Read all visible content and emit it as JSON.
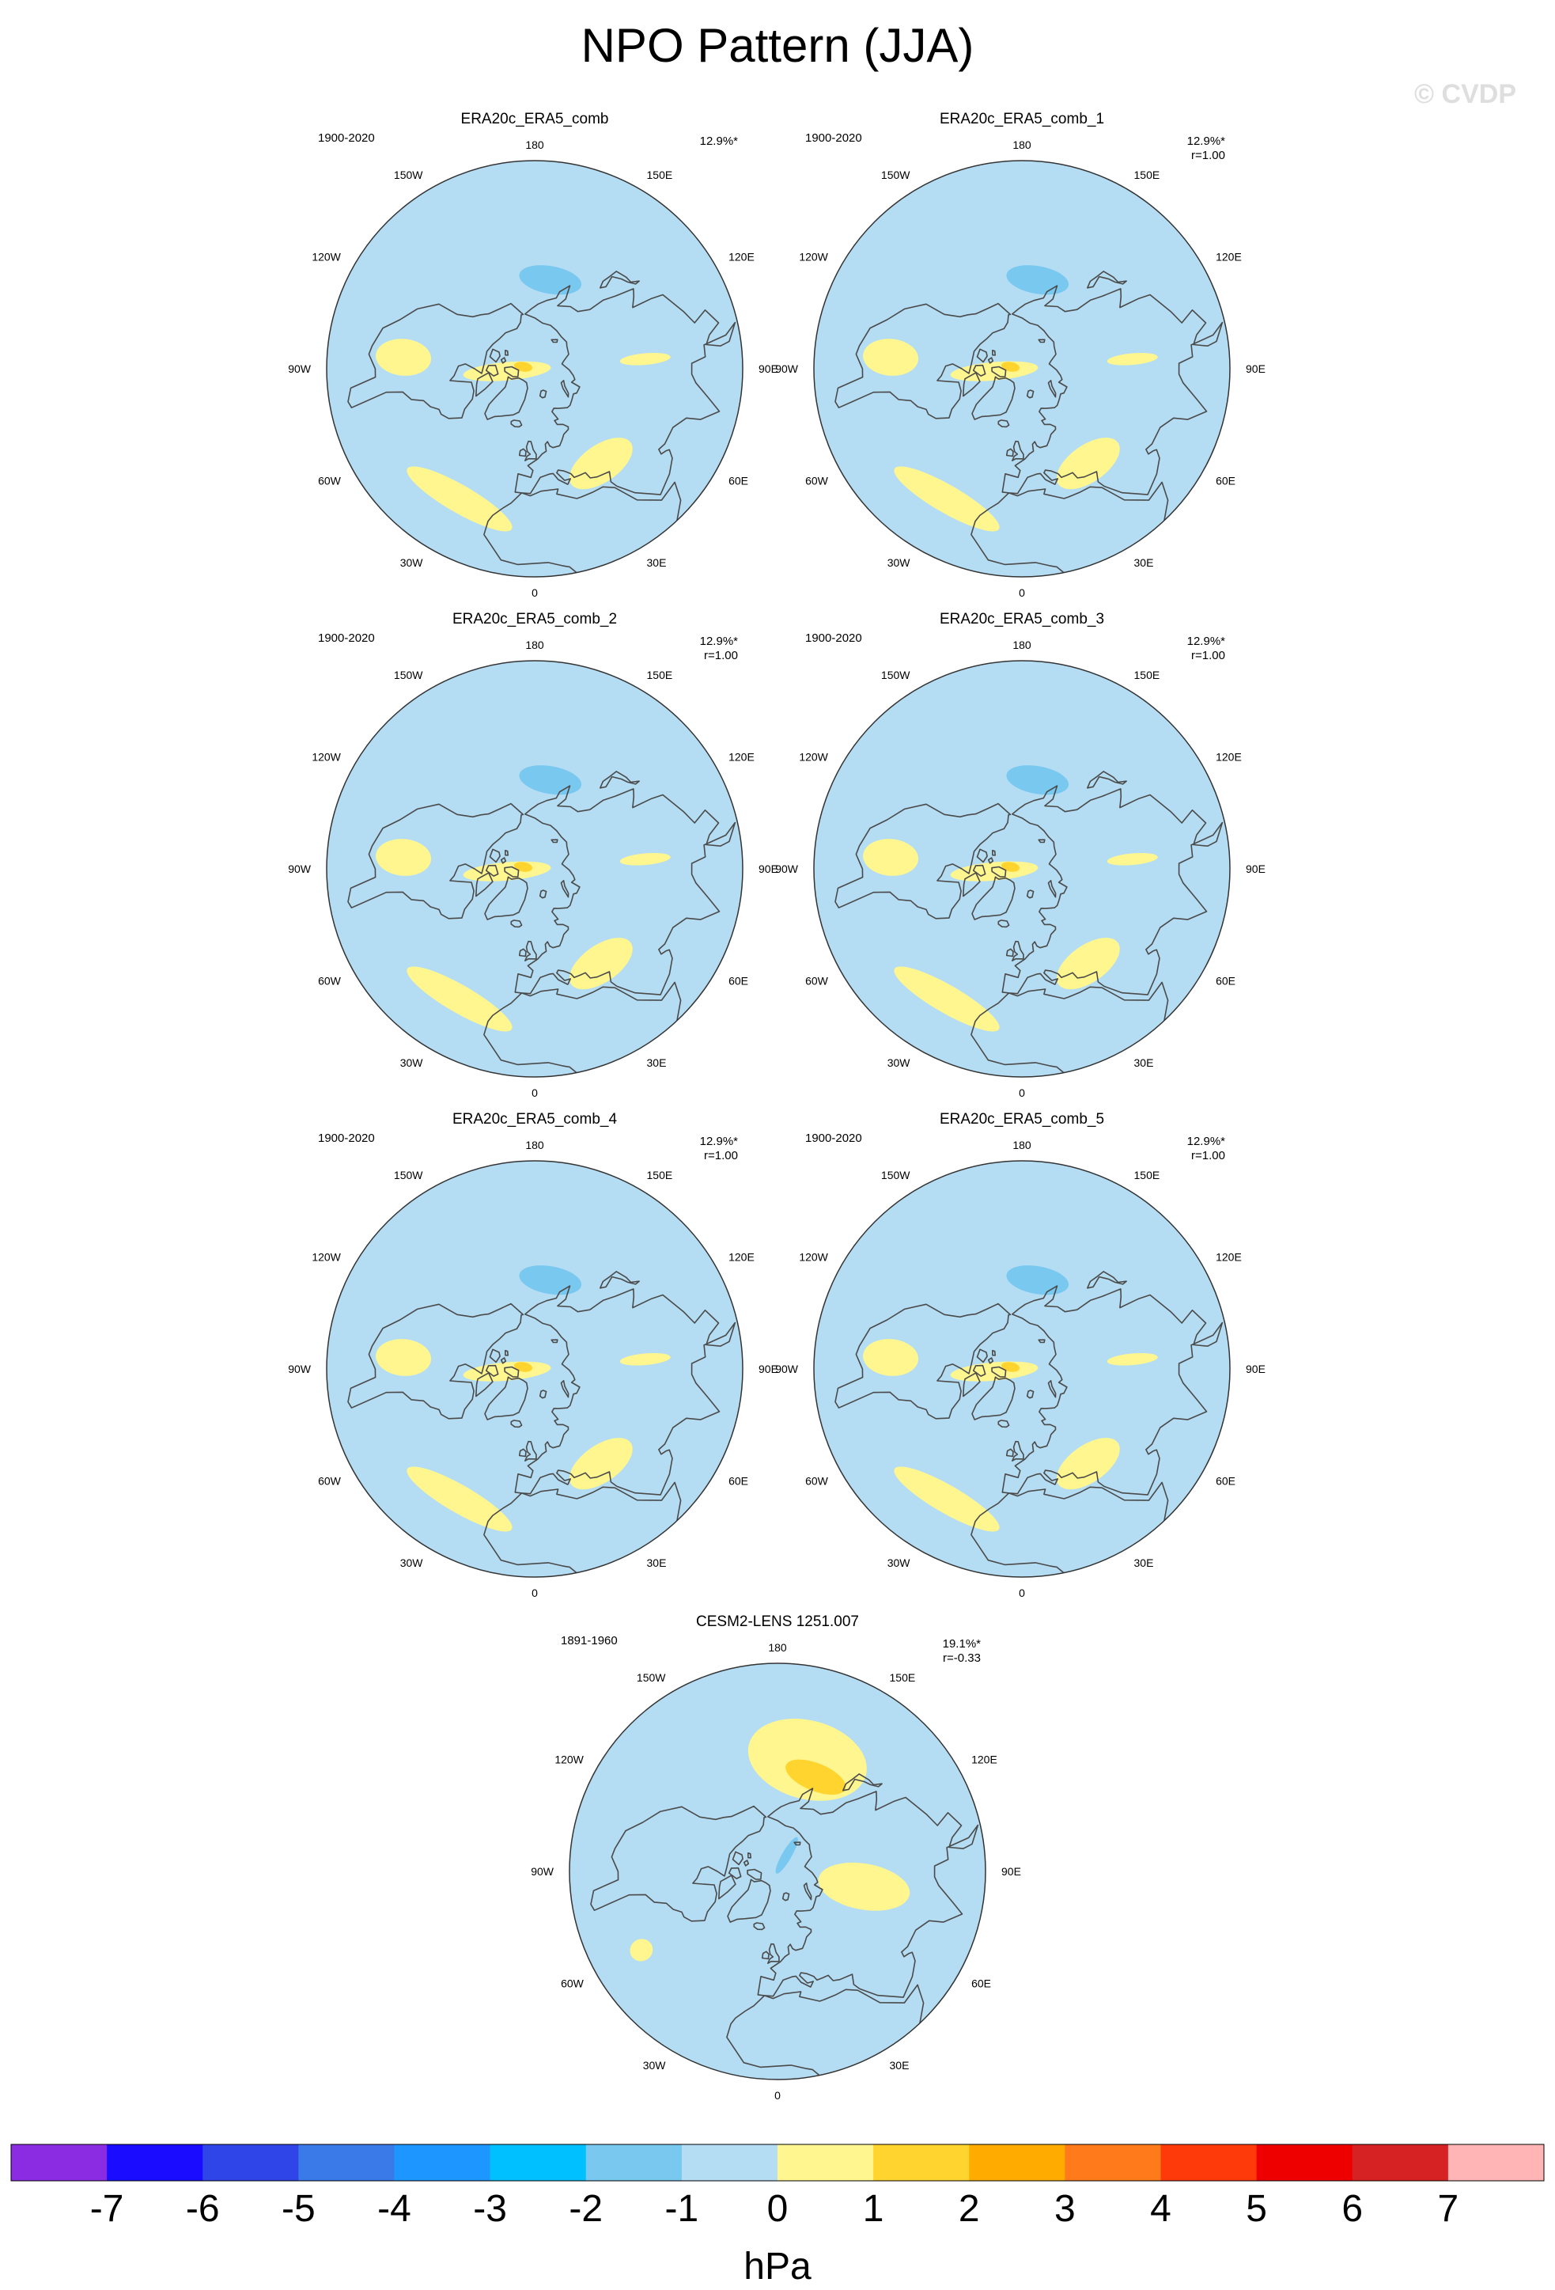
{
  "page": {
    "title": "NPO Pattern (JJA)",
    "watermark": "© CVDP"
  },
  "colors": {
    "land_outline": "#4a4a4a",
    "map_background": "#b4dcf2",
    "rim": "#333333"
  },
  "chart_data": [
    {
      "type": "polar-map",
      "title": "ERA20c_ERA5_comb",
      "period": "1900-2020",
      "pct": "12.9%*",
      "r": "",
      "longitude_labels": [
        "180",
        "150E",
        "120E",
        "90E",
        "60E",
        "30E",
        "0",
        "30W",
        "60W",
        "90W",
        "120W",
        "150W"
      ],
      "anomalies": [
        {
          "kind": "neg",
          "level": -1,
          "lon": 170,
          "lat": 51,
          "w": 20,
          "h": 6
        },
        {
          "kind": "pos",
          "level": 1,
          "lon": -85,
          "lat": 78,
          "w": 19,
          "h": 19
        },
        {
          "kind": "pos",
          "level": 2,
          "lon": -100,
          "lat": 85,
          "w": 3,
          "h": 4
        },
        {
          "kind": "pos",
          "level": 1,
          "lon": -95,
          "lat": 33,
          "w": 8,
          "h": 12
        },
        {
          "kind": "pos",
          "level": 1,
          "lon": 95,
          "lat": 42,
          "w": 3,
          "h": 11
        },
        {
          "kind": "pos",
          "level": 1,
          "lon": -30,
          "lat": 25,
          "w": 23,
          "h": 6
        },
        {
          "kind": "pos",
          "level": 1,
          "lon": 35,
          "lat": 40,
          "w": 18,
          "h": 8
        }
      ]
    },
    {
      "type": "polar-map",
      "title": "ERA20c_ERA5_comb_1",
      "period": "1900-2020",
      "pct": "12.9%*",
      "r": "r=1.00",
      "longitude_labels": [
        "180",
        "150E",
        "120E",
        "90E",
        "60E",
        "30E",
        "0",
        "30W",
        "60W",
        "90W",
        "120W",
        "150W"
      ],
      "anomalies": [
        {
          "kind": "neg",
          "level": -1,
          "lon": 170,
          "lat": 51,
          "w": 20,
          "h": 6
        },
        {
          "kind": "pos",
          "level": 1,
          "lon": -85,
          "lat": 78,
          "w": 19,
          "h": 19
        },
        {
          "kind": "pos",
          "level": 2,
          "lon": -100,
          "lat": 85,
          "w": 3,
          "h": 4
        },
        {
          "kind": "pos",
          "level": 1,
          "lon": -95,
          "lat": 33,
          "w": 8,
          "h": 12
        },
        {
          "kind": "pos",
          "level": 1,
          "lon": 95,
          "lat": 42,
          "w": 3,
          "h": 11
        },
        {
          "kind": "pos",
          "level": 1,
          "lon": -30,
          "lat": 25,
          "w": 23,
          "h": 6
        },
        {
          "kind": "pos",
          "level": 1,
          "lon": 35,
          "lat": 40,
          "w": 18,
          "h": 8
        }
      ]
    },
    {
      "type": "polar-map",
      "title": "ERA20c_ERA5_comb_2",
      "period": "1900-2020",
      "pct": "12.9%*",
      "r": "r=1.00",
      "longitude_labels": [
        "180",
        "150E",
        "120E",
        "90E",
        "60E",
        "30E",
        "0",
        "30W",
        "60W",
        "90W",
        "120W",
        "150W"
      ],
      "anomalies": [
        {
          "kind": "neg",
          "level": -1,
          "lon": 170,
          "lat": 51,
          "w": 20,
          "h": 6
        },
        {
          "kind": "pos",
          "level": 1,
          "lon": -85,
          "lat": 78,
          "w": 19,
          "h": 19
        },
        {
          "kind": "pos",
          "level": 2,
          "lon": -100,
          "lat": 85,
          "w": 3,
          "h": 4
        },
        {
          "kind": "pos",
          "level": 1,
          "lon": -95,
          "lat": 33,
          "w": 8,
          "h": 12
        },
        {
          "kind": "pos",
          "level": 1,
          "lon": 95,
          "lat": 42,
          "w": 3,
          "h": 11
        },
        {
          "kind": "pos",
          "level": 1,
          "lon": -30,
          "lat": 25,
          "w": 23,
          "h": 6
        },
        {
          "kind": "pos",
          "level": 1,
          "lon": 35,
          "lat": 40,
          "w": 18,
          "h": 8
        }
      ]
    },
    {
      "type": "polar-map",
      "title": "ERA20c_ERA5_comb_3",
      "period": "1900-2020",
      "pct": "12.9%*",
      "r": "r=1.00",
      "longitude_labels": [
        "180",
        "150E",
        "120E",
        "90E",
        "60E",
        "30E",
        "0",
        "30W",
        "60W",
        "90W",
        "120W",
        "150W"
      ],
      "anomalies": [
        {
          "kind": "neg",
          "level": -1,
          "lon": 170,
          "lat": 51,
          "w": 20,
          "h": 6
        },
        {
          "kind": "pos",
          "level": 1,
          "lon": -85,
          "lat": 78,
          "w": 19,
          "h": 19
        },
        {
          "kind": "pos",
          "level": 2,
          "lon": -100,
          "lat": 85,
          "w": 3,
          "h": 4
        },
        {
          "kind": "pos",
          "level": 1,
          "lon": -95,
          "lat": 33,
          "w": 8,
          "h": 12
        },
        {
          "kind": "pos",
          "level": 1,
          "lon": 95,
          "lat": 42,
          "w": 3,
          "h": 11
        },
        {
          "kind": "pos",
          "level": 1,
          "lon": -30,
          "lat": 25,
          "w": 23,
          "h": 6
        },
        {
          "kind": "pos",
          "level": 1,
          "lon": 35,
          "lat": 40,
          "w": 18,
          "h": 8
        }
      ]
    },
    {
      "type": "polar-map",
      "title": "ERA20c_ERA5_comb_4",
      "period": "1900-2020",
      "pct": "12.9%*",
      "r": "r=1.00",
      "longitude_labels": [
        "180",
        "150E",
        "120E",
        "90E",
        "60E",
        "30E",
        "0",
        "30W",
        "60W",
        "90W",
        "120W",
        "150W"
      ],
      "anomalies": [
        {
          "kind": "neg",
          "level": -1,
          "lon": 170,
          "lat": 51,
          "w": 20,
          "h": 6
        },
        {
          "kind": "pos",
          "level": 1,
          "lon": -85,
          "lat": 78,
          "w": 19,
          "h": 19
        },
        {
          "kind": "pos",
          "level": 2,
          "lon": -100,
          "lat": 85,
          "w": 3,
          "h": 4
        },
        {
          "kind": "pos",
          "level": 1,
          "lon": -95,
          "lat": 33,
          "w": 8,
          "h": 12
        },
        {
          "kind": "pos",
          "level": 1,
          "lon": 95,
          "lat": 42,
          "w": 3,
          "h": 11
        },
        {
          "kind": "pos",
          "level": 1,
          "lon": -30,
          "lat": 25,
          "w": 23,
          "h": 6
        },
        {
          "kind": "pos",
          "level": 1,
          "lon": 35,
          "lat": 40,
          "w": 18,
          "h": 8
        }
      ]
    },
    {
      "type": "polar-map",
      "title": "ERA20c_ERA5_comb_5",
      "period": "1900-2020",
      "pct": "12.9%*",
      "r": "r=1.00",
      "longitude_labels": [
        "180",
        "150E",
        "120E",
        "90E",
        "60E",
        "30E",
        "0",
        "30W",
        "60W",
        "90W",
        "120W",
        "150W"
      ],
      "anomalies": [
        {
          "kind": "neg",
          "level": -1,
          "lon": 170,
          "lat": 51,
          "w": 20,
          "h": 6
        },
        {
          "kind": "pos",
          "level": 1,
          "lon": -85,
          "lat": 78,
          "w": 19,
          "h": 19
        },
        {
          "kind": "pos",
          "level": 2,
          "lon": -100,
          "lat": 85,
          "w": 3,
          "h": 4
        },
        {
          "kind": "pos",
          "level": 1,
          "lon": -95,
          "lat": 33,
          "w": 8,
          "h": 12
        },
        {
          "kind": "pos",
          "level": 1,
          "lon": 95,
          "lat": 42,
          "w": 3,
          "h": 11
        },
        {
          "kind": "pos",
          "level": 1,
          "lon": -30,
          "lat": 25,
          "w": 23,
          "h": 6
        },
        {
          "kind": "pos",
          "level": 1,
          "lon": 35,
          "lat": 40,
          "w": 18,
          "h": 8
        }
      ]
    },
    {
      "type": "polar-map",
      "title": "CESM2-LENS 1251.007",
      "period": "1891-1960",
      "pct": "19.1%*",
      "r": "r=-0.33",
      "longitude_labels": [
        "180",
        "150E",
        "120E",
        "90E",
        "60E",
        "30E",
        "0",
        "30W",
        "60W",
        "90W",
        "120W",
        "150W"
      ],
      "anomalies": [
        {
          "kind": "pos",
          "level": 1,
          "lon": 165,
          "lat": 40,
          "w": 30,
          "h": 17
        },
        {
          "kind": "pos",
          "level": 2,
          "lon": 158,
          "lat": 46,
          "w": 18,
          "h": 6
        },
        {
          "kind": "pos",
          "level": 1,
          "lon": 80,
          "lat": 52,
          "w": 15,
          "h": 20
        },
        {
          "kind": "neg",
          "level": -1,
          "lon": 150,
          "lat": 82,
          "w": 10,
          "h": 9
        },
        {
          "kind": "pos",
          "level": 1,
          "lon": -60,
          "lat": 22,
          "w": 4,
          "h": 5
        }
      ]
    }
  ],
  "colorbar": {
    "units": "hPa",
    "tick_labels": [
      "-7",
      "-6",
      "-5",
      "-4",
      "-3",
      "-2",
      "-1",
      "0",
      "1",
      "2",
      "3",
      "4",
      "5",
      "6",
      "7"
    ],
    "colors": [
      "#8b2be2",
      "#1a0dff",
      "#2f45e8",
      "#3a7ae8",
      "#1e96ff",
      "#00c0ff",
      "#78c8f0",
      "#b4dcf2",
      "#fff68f",
      "#ffd42e",
      "#ffab00",
      "#ff7a1a",
      "#ff3a0a",
      "#ee0000",
      "#d62222",
      "#ffb5b5"
    ]
  }
}
